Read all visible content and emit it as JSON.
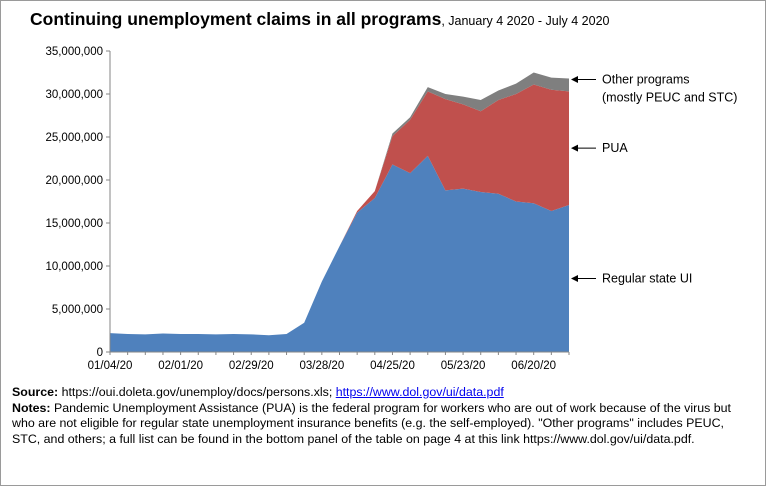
{
  "header": {
    "title": "Continuing unemployment claims in all programs",
    "subtitle": ", January 4 2020  - July 4 2020"
  },
  "chart_data": {
    "type": "area",
    "stacked": true,
    "title": "Continuing unemployment claims in all programs",
    "subtitle": "January 4 2020 - July 4 2020",
    "x": [
      "01/04/20",
      "01/11/20",
      "01/18/20",
      "01/25/20",
      "02/01/20",
      "02/08/20",
      "02/15/20",
      "02/22/20",
      "02/29/20",
      "03/07/20",
      "03/14/20",
      "03/21/20",
      "03/28/20",
      "04/04/20",
      "04/11/20",
      "04/18/20",
      "04/25/20",
      "05/02/20",
      "05/09/20",
      "05/16/20",
      "05/23/20",
      "05/30/20",
      "06/06/20",
      "06/13/20",
      "06/20/20",
      "06/27/20",
      "07/04/20"
    ],
    "tick_labels": [
      "01/04/20",
      "02/01/20",
      "02/29/20",
      "03/28/20",
      "04/25/20",
      "05/23/20",
      "06/20/20"
    ],
    "ylim": [
      0,
      35000000
    ],
    "yticks": [
      "0",
      "5,000,000",
      "10,000,000",
      "15,000,000",
      "20,000,000",
      "25,000,000",
      "30,000,000",
      "35,000,000"
    ],
    "series": [
      {
        "name": "Regular state UI",
        "color": "#4f81bd",
        "values": [
          2200000,
          2100000,
          2050000,
          2150000,
          2100000,
          2100000,
          2050000,
          2100000,
          2050000,
          1950000,
          2100000,
          3400000,
          8200000,
          12300000,
          16200000,
          17900000,
          21800000,
          20800000,
          22800000,
          18800000,
          19000000,
          18600000,
          18400000,
          17500000,
          17300000,
          16400000,
          17100000
        ]
      },
      {
        "name": "PUA",
        "color": "#c0504d",
        "values": [
          0,
          0,
          0,
          0,
          0,
          0,
          0,
          0,
          0,
          0,
          0,
          0,
          0,
          0,
          200000,
          800000,
          3300000,
          6200000,
          7500000,
          10600000,
          9800000,
          9400000,
          10900000,
          12500000,
          13800000,
          14100000,
          13200000
        ]
      },
      {
        "name": "Other programs (mostly PEUC and STC)",
        "color": "#7f7f7f",
        "values": [
          0,
          0,
          0,
          0,
          0,
          0,
          0,
          0,
          0,
          0,
          0,
          0,
          0,
          0,
          0,
          0,
          300000,
          300000,
          500000,
          600000,
          900000,
          1300000,
          1100000,
          1200000,
          1400000,
          1400000,
          1500000
        ]
      }
    ],
    "annotations": [
      {
        "series": 2,
        "lines": [
          "Other programs",
          "(mostly PEUC and STC)"
        ]
      },
      {
        "series": 1,
        "lines": [
          "PUA"
        ]
      },
      {
        "series": 0,
        "lines": [
          "Regular state UI"
        ]
      }
    ]
  },
  "notes": {
    "source_label": "Source:",
    "source_text": "https://oui.doleta.gov/unemploy/docs/persons.xls; ",
    "source_link": "https://www.dol.gov/ui/data.pdf",
    "notes_label": "Notes:",
    "notes_text": "Pandemic Unemployment Assistance (PUA) is the federal program for workers who are out of work because of the virus but who are not eligible for regular state unemployment insurance benefits (e.g. the self-employed). \"Other programs\" includes PEUC, STC, and others; a full list can be found in the bottom panel of the table on page 4 at this link https://www.dol.gov/ui/data.pdf."
  }
}
